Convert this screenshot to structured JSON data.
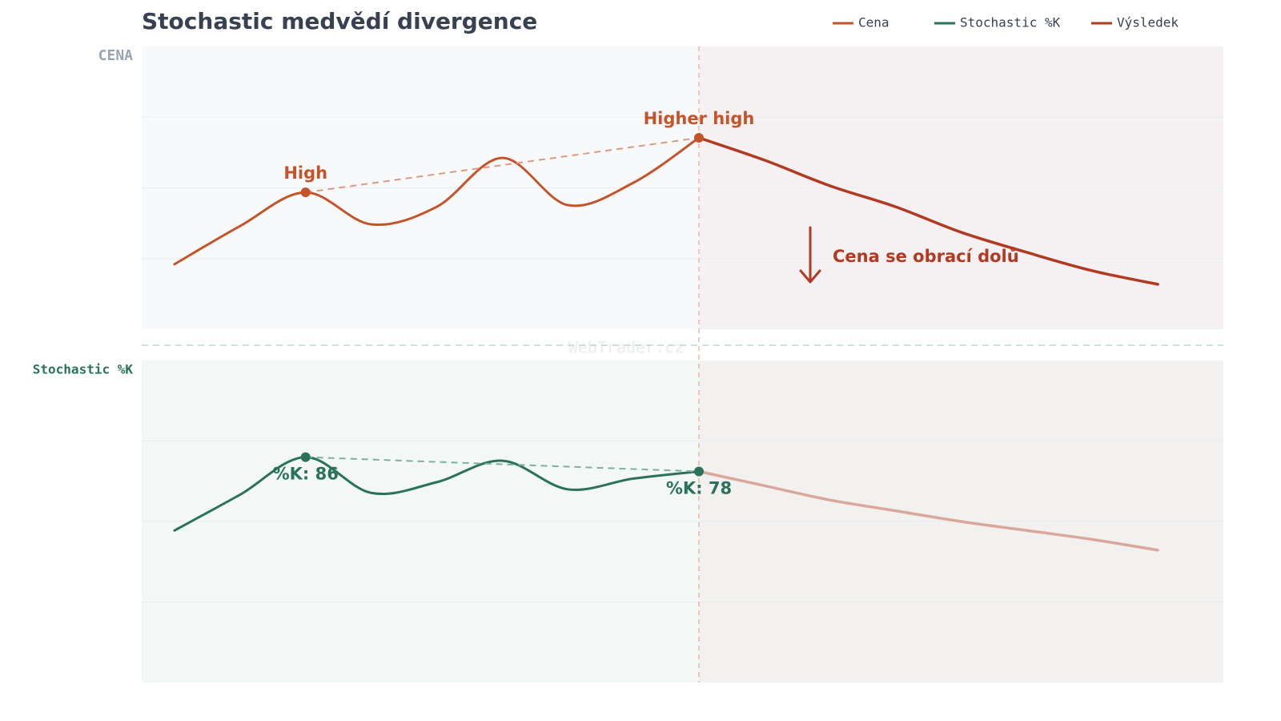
{
  "chart_data": [
    {
      "type": "line",
      "title": "Stochastic medvědí divergence",
      "y_label": "CENA",
      "watermark": "WebTrader.cz",
      "x": [
        0,
        1,
        2,
        3,
        4,
        5,
        6,
        7,
        8,
        9,
        10,
        11,
        12,
        13,
        14,
        15
      ],
      "xlim": [
        -0.5,
        16
      ],
      "ylim": [
        0,
        100
      ],
      "grid": true,
      "series": [
        {
          "name": "Cena",
          "color": "#c4552b",
          "values": [
            23,
            36.5,
            48.4,
            37.1,
            43.3,
            60.6,
            43.9,
            51.8,
            67.7,
            null,
            null,
            null,
            null,
            null,
            null,
            null
          ]
        },
        {
          "name": "Výsledek",
          "color": "#b03a22",
          "values": [
            null,
            null,
            null,
            null,
            null,
            null,
            null,
            null,
            67.7,
            59.8,
            50.7,
            43.3,
            34.3,
            27.2,
            20.7,
            15.9
          ]
        }
      ],
      "markers": [
        {
          "x": 2,
          "label": "High"
        },
        {
          "x": 8,
          "label": "Higher high"
        }
      ],
      "annotation": "Cena se obrací dolů"
    },
    {
      "type": "line",
      "y_label": "Stochastic %K",
      "x": [
        0,
        1,
        2,
        3,
        4,
        5,
        6,
        7,
        8,
        9,
        10,
        11,
        12,
        13,
        14,
        15
      ],
      "xlim": [
        -0.5,
        16
      ],
      "ylim": [
        -40,
        140
      ],
      "grid": true,
      "series": [
        {
          "name": "Stochastic %K",
          "color": "#2a735a",
          "values": [
            45,
            65,
            86,
            66,
            72,
            84,
            68,
            74,
            78,
            null,
            null,
            null,
            null,
            null,
            null,
            null
          ],
          "value_labels": [
            null,
            null,
            "%K: 86",
            null,
            null,
            null,
            null,
            null,
            "%K: 78",
            null,
            null,
            null,
            null,
            null,
            null,
            null
          ]
        },
        {
          "color": "#d9a89a",
          "values": [
            null,
            null,
            null,
            null,
            null,
            null,
            null,
            null,
            78,
            70,
            62,
            56,
            50,
            45,
            40,
            34
          ]
        }
      ]
    }
  ]
}
